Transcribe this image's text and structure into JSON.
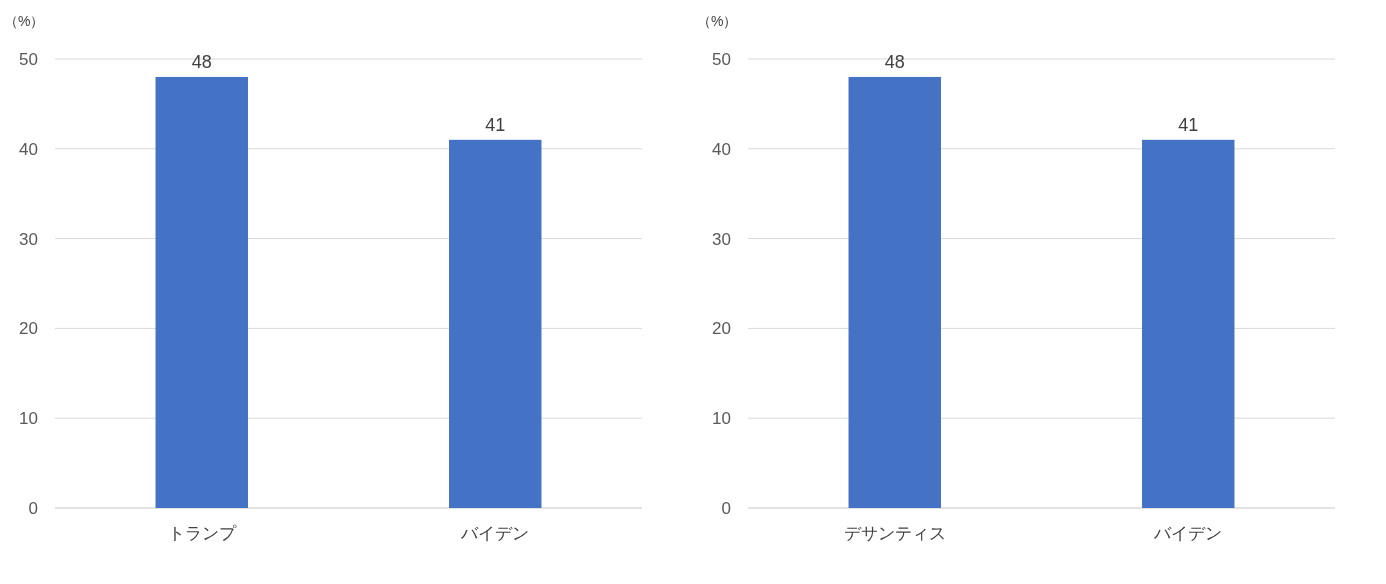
{
  "chart_data": [
    {
      "type": "bar",
      "ylabel": "（%）",
      "categories": [
        "トランプ",
        "バイデン"
      ],
      "values": [
        48,
        41
      ],
      "color": "#4472c4",
      "ylim": [
        0,
        50
      ],
      "yticks": [
        0,
        10,
        20,
        30,
        40,
        50
      ],
      "grid": "y",
      "data_labels": true
    },
    {
      "type": "bar",
      "ylabel": "（%）",
      "categories": [
        "デサンティス",
        "バイデン"
      ],
      "values": [
        48,
        41
      ],
      "color": "#4472c4",
      "ylim": [
        0,
        50
      ],
      "yticks": [
        0,
        10,
        20,
        30,
        40,
        50
      ],
      "grid": "y",
      "data_labels": true
    }
  ]
}
